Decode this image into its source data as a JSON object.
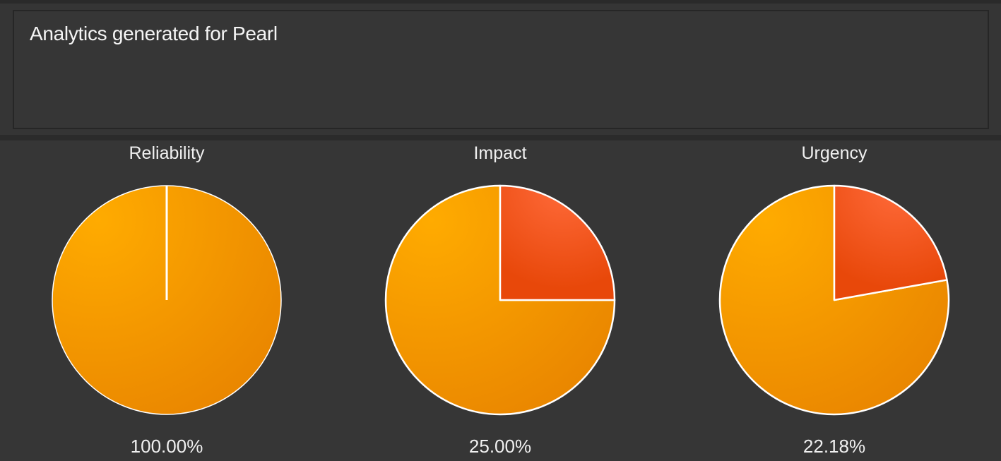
{
  "header": {
    "info_text": "Analytics generated for Pearl"
  },
  "colors": {
    "base_slice": "#f29a00",
    "highlight_slice": "#f05a1e",
    "slice_border": "#ffffff",
    "background": "#353535"
  },
  "chart_data": [
    {
      "type": "pie",
      "title": "Reliability",
      "value_label": "100.00%",
      "highlight_fraction": 1.0
    },
    {
      "type": "pie",
      "title": "Impact",
      "value_label": "25.00%",
      "highlight_fraction": 0.25
    },
    {
      "type": "pie",
      "title": "Urgency",
      "value_label": "22.18%",
      "highlight_fraction": 0.2218
    }
  ]
}
